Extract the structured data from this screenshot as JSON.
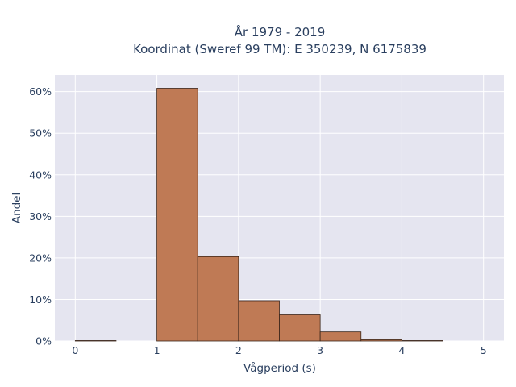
{
  "chart_data": {
    "type": "bar",
    "title_line1": "År 1979 - 2019",
    "title_line2": "Koordinat (Sweref 99 TM): E 350239, N 6175839",
    "xlabel": "Vågperiod (s)",
    "ylabel": "Andel",
    "xlim": [
      -0.25,
      5.25
    ],
    "ylim": [
      0,
      64
    ],
    "x_ticks": [
      {
        "value": 0,
        "label": "0"
      },
      {
        "value": 1,
        "label": "1"
      },
      {
        "value": 2,
        "label": "2"
      },
      {
        "value": 3,
        "label": "3"
      },
      {
        "value": 4,
        "label": "4"
      },
      {
        "value": 5,
        "label": "5"
      }
    ],
    "y_ticks": [
      {
        "value": 0,
        "label": "0%"
      },
      {
        "value": 10,
        "label": "10%"
      },
      {
        "value": 20,
        "label": "20%"
      },
      {
        "value": 30,
        "label": "30%"
      },
      {
        "value": 40,
        "label": "40%"
      },
      {
        "value": 50,
        "label": "50%"
      },
      {
        "value": 60,
        "label": "60%"
      }
    ],
    "bins": [
      {
        "x0": 0,
        "x1": 0.5,
        "value": 0.1
      },
      {
        "x0": 0.5,
        "x1": 1,
        "value": 0
      },
      {
        "x0": 1,
        "x1": 1.5,
        "value": 60.8
      },
      {
        "x0": 1.5,
        "x1": 2,
        "value": 20.3
      },
      {
        "x0": 2,
        "x1": 2.5,
        "value": 9.7
      },
      {
        "x0": 2.5,
        "x1": 3,
        "value": 6.3
      },
      {
        "x0": 3,
        "x1": 3.5,
        "value": 2.2
      },
      {
        "x0": 3.5,
        "x1": 4,
        "value": 0.3
      },
      {
        "x0": 4,
        "x1": 4.5,
        "value": 0.1
      },
      {
        "x0": 4.5,
        "x1": 5,
        "value": 0
      }
    ],
    "bar_color": "#bf7a55",
    "bar_edge_color": "#3a2418",
    "plot_bg": "#e5e5f0",
    "grid": true,
    "legend": "none"
  }
}
